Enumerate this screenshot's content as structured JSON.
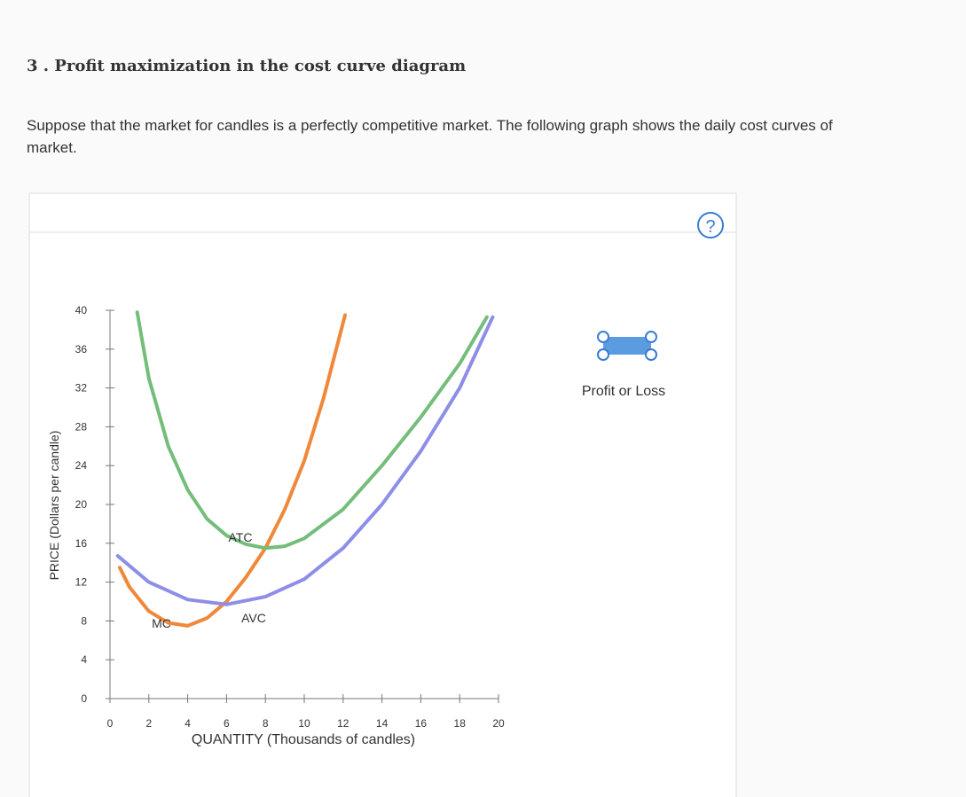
{
  "header": {
    "title": "3 . Profit maximization in the cost curve diagram",
    "paragraph": [
      "Suppose that the market for candles is a perfectly competitive market. The following graph shows the daily cost curves of",
      "market."
    ]
  },
  "tools": {
    "help": "?",
    "profit_or_loss": "Profit or Loss"
  },
  "chart_data": {
    "type": "line",
    "x_label": "QUANTITY (Thousands of candles)",
    "y_label": "PRICE (Dollars per candle)",
    "xlim": [
      0,
      20
    ],
    "xticks": [
      0,
      2,
      4,
      6,
      8,
      10,
      12,
      14,
      16,
      18,
      20
    ],
    "ylim": [
      0,
      40
    ],
    "yticks": [
      0,
      4,
      8,
      12,
      16,
      20,
      24,
      28,
      32,
      36,
      40
    ],
    "series": [
      {
        "name": "MC",
        "color": "#f0883a",
        "x": [
          0.5,
          1,
          2,
          3,
          4,
          5,
          6,
          7,
          8,
          9,
          10,
          11,
          12.1
        ],
        "values": [
          13.5,
          11.5,
          9,
          7.8,
          7.5,
          8.3,
          10,
          12.5,
          15.5,
          19.5,
          24.5,
          31,
          39.5
        ]
      },
      {
        "name": "ATC",
        "color": "#74bd7a",
        "x": [
          1.4,
          2,
          3,
          4,
          5,
          6,
          7,
          8,
          9,
          10,
          12,
          14,
          16,
          18,
          19.4
        ],
        "values": [
          39.8,
          33,
          26,
          21.5,
          18.5,
          16.8,
          15.9,
          15.5,
          15.7,
          16.5,
          19.5,
          24,
          29,
          34.5,
          39.3
        ]
      },
      {
        "name": "AVC",
        "color": "#8e8ee8",
        "x": [
          0.4,
          2,
          4,
          6,
          8,
          10,
          12,
          14,
          16,
          18,
          19.7
        ],
        "values": [
          14.7,
          12,
          10.2,
          9.7,
          10.5,
          12.3,
          15.5,
          20,
          25.5,
          32,
          39.3
        ]
      }
    ]
  }
}
